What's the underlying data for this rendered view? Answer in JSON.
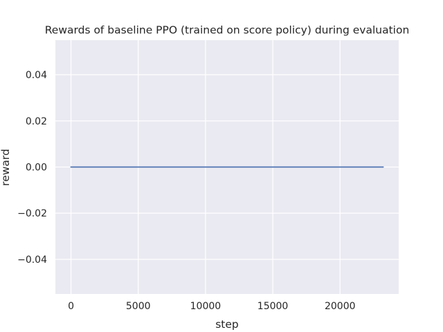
{
  "chart_data": {
    "type": "line",
    "title": "Rewards of baseline PPO (trained on score policy) during evaluation",
    "xlabel": "step",
    "ylabel": "reward",
    "xlim": [
      -1160,
      24360
    ],
    "ylim": [
      -0.055,
      0.055
    ],
    "x_ticks": [
      0,
      5000,
      10000,
      15000,
      20000
    ],
    "x_tick_labels": [
      "0",
      "5000",
      "10000",
      "15000",
      "20000"
    ],
    "y_ticks": [
      -0.04,
      -0.02,
      0.0,
      0.02,
      0.04
    ],
    "y_tick_labels": [
      "−0.04",
      "−0.02",
      "0.00",
      "0.02",
      "0.04"
    ],
    "grid": true,
    "series": [
      {
        "color": "#4c72b0",
        "x": [
          0,
          23200
        ],
        "y": [
          0.0,
          0.0
        ]
      }
    ]
  },
  "colors": {
    "plot_background": "#eaeaf2",
    "grid": "#ffffff",
    "line": "#4c72b0",
    "text": "#262626"
  }
}
